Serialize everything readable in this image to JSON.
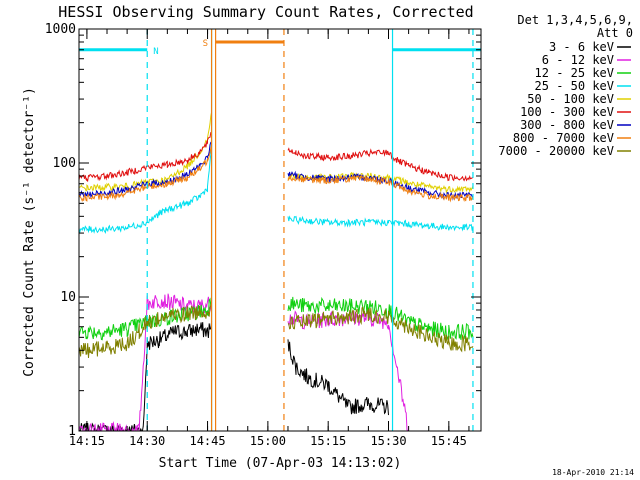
{
  "chart_data": {
    "type": "line",
    "title": "HESSI Observing Summary Count Rates, Corrected",
    "xlabel": "Start Time (07-Apr-03 14:13:02)",
    "ylabel": "Corrected Count Rate (s⁻¹ detector⁻¹)",
    "x_unit": "UT time (HH:MM), 07-Apr-03",
    "xlim": [
      "14:13:02",
      "15:53:00"
    ],
    "ylim": [
      1,
      1000
    ],
    "yscale": "log",
    "grid": false,
    "xticks": [
      "14:15",
      "14:30",
      "14:45",
      "15:00",
      "15:15",
      "15:30",
      "15:45"
    ],
    "yticks": [
      "1",
      "10",
      "100",
      "1000"
    ],
    "legend_title": [
      "Det 1,3,4,5,6,9,",
      "Att 0"
    ],
    "legend_position": "right",
    "timestamp": "18-Apr-2010 21:14",
    "annotations": [
      {
        "text": "N",
        "color": "#00e0f0"
      },
      {
        "text": "S",
        "color": "#f07f10"
      }
    ],
    "flags": {
      "night": {
        "label": "N",
        "color": "#00e0f0",
        "intervals": [
          [
            "14:13:02",
            "14:30:00"
          ],
          [
            "15:31:00",
            "15:53:00"
          ]
        ],
        "bar_y": 700
      },
      "saa": {
        "label": "S",
        "color": "#f07f10",
        "intervals": [
          [
            "14:47:00",
            "15:04:00"
          ]
        ],
        "bar_y": 800
      }
    },
    "vlines": [
      {
        "time": "14:30:00",
        "color": "#00e0f0",
        "style": "dashed"
      },
      {
        "time": "14:46:00",
        "color": "#00e0f0",
        "style": "solid"
      },
      {
        "time": "15:31:00",
        "color": "#00e0f0",
        "style": "solid"
      },
      {
        "time": "15:51:00",
        "color": "#00e0f0",
        "style": "dashed"
      },
      {
        "time": "14:46:00",
        "color": "#f07f10",
        "style": "solid"
      },
      {
        "time": "14:47:00",
        "color": "#f07f10",
        "style": "solid"
      },
      {
        "time": "15:04:00",
        "color": "#f07f10",
        "style": "dashed"
      }
    ],
    "series": [
      {
        "name": "3 - 6 keV",
        "color": "#000000",
        "times": [
          "14:13:02",
          "14:15",
          "14:20",
          "14:25",
          "14:29",
          "14:30",
          "14:33",
          "14:37",
          "14:40",
          "14:43",
          "14:45",
          "14:46",
          "15:05",
          "15:07",
          "15:10",
          "15:15",
          "15:20",
          "15:25",
          "15:30"
        ],
        "values": [
          1,
          1,
          1,
          1,
          1,
          4.5,
          4.8,
          5.5,
          5.5,
          5.8,
          5.5,
          6,
          4.5,
          3,
          2.5,
          2.2,
          1.5,
          1.6,
          1.5
        ]
      },
      {
        "name": "6 - 12 keV",
        "color": "#e020e0",
        "times": [
          "14:13:02",
          "14:15",
          "14:20",
          "14:25",
          "14:28",
          "14:30",
          "14:33",
          "14:37",
          "14:40",
          "14:43",
          "14:46",
          "15:05",
          "15:10",
          "15:15",
          "15:20",
          "15:25",
          "15:30",
          "15:35"
        ],
        "values": [
          1,
          1,
          1,
          1,
          1,
          9,
          9.5,
          9,
          8.5,
          8.5,
          9,
          7,
          6.5,
          6.8,
          7,
          7,
          6.5,
          1
        ]
      },
      {
        "name": "12 - 25 keV",
        "color": "#10d010",
        "times": [
          "14:13:02",
          "14:15",
          "14:20",
          "14:25",
          "14:30",
          "14:35",
          "14:40",
          "14:45",
          "14:46",
          "15:05",
          "15:10",
          "15:15",
          "15:20",
          "15:25",
          "15:30",
          "15:35",
          "15:40",
          "15:45",
          "15:51"
        ],
        "values": [
          5.5,
          5.5,
          5.5,
          5.8,
          6.5,
          7,
          7.5,
          8,
          10,
          9,
          8.5,
          8.5,
          8.5,
          8.5,
          8,
          6.5,
          5.8,
          5.5,
          5.5
        ]
      },
      {
        "name": "25 - 50 keV",
        "color": "#00e0f0",
        "times": [
          "14:13:02",
          "14:15",
          "14:20",
          "14:25",
          "14:30",
          "14:33",
          "14:36",
          "14:40",
          "14:43",
          "14:45",
          "14:46",
          "15:05",
          "15:10",
          "15:15",
          "15:20",
          "15:25",
          "15:30",
          "15:35",
          "15:40",
          "15:45",
          "15:51"
        ],
        "values": [
          32,
          32,
          32,
          33,
          36,
          42,
          46,
          50,
          56,
          65,
          140,
          38,
          37,
          36,
          36,
          36,
          36,
          35,
          34,
          33,
          33
        ]
      },
      {
        "name": "50 - 100 keV",
        "color": "#e0d000",
        "times": [
          "14:13:02",
          "14:15",
          "14:20",
          "14:25",
          "14:30",
          "14:35",
          "14:40",
          "14:43",
          "14:45",
          "14:46",
          "15:05",
          "15:10",
          "15:15",
          "15:20",
          "15:25",
          "15:30",
          "15:33",
          "15:36",
          "15:40",
          "15:45",
          "15:51"
        ],
        "values": [
          65,
          65,
          66,
          67,
          72,
          75,
          95,
          120,
          150,
          240,
          80,
          78,
          78,
          80,
          80,
          78,
          74,
          70,
          66,
          64,
          64
        ]
      },
      {
        "name": "100 - 300 keV",
        "color": "#e01010",
        "times": [
          "14:13:02",
          "14:15",
          "14:20",
          "14:25",
          "14:30",
          "14:35",
          "14:40",
          "14:43",
          "14:45",
          "14:46",
          "15:05",
          "15:07",
          "15:10",
          "15:15",
          "15:20",
          "15:25",
          "15:30",
          "15:32",
          "15:35",
          "15:40",
          "15:45",
          "15:51"
        ],
        "values": [
          78,
          78,
          80,
          85,
          93,
          97,
          105,
          120,
          140,
          175,
          125,
          120,
          112,
          110,
          112,
          118,
          120,
          105,
          95,
          85,
          78,
          78
        ]
      },
      {
        "name": "300 - 800 keV",
        "color": "#0000c0",
        "times": [
          "14:13:02",
          "14:15",
          "14:20",
          "14:25",
          "14:30",
          "14:35",
          "14:40",
          "14:43",
          "14:45",
          "14:46",
          "15:05",
          "15:10",
          "15:15",
          "15:20",
          "15:25",
          "15:30",
          "15:35",
          "15:40",
          "15:45",
          "15:51"
        ],
        "values": [
          58,
          58,
          60,
          63,
          70,
          72,
          82,
          95,
          110,
          150,
          82,
          78,
          76,
          78,
          78,
          74,
          65,
          60,
          57,
          57
        ]
      },
      {
        "name": "800 - 7000 keV",
        "color": "#f07f10",
        "times": [
          "14:13:02",
          "14:15",
          "14:20",
          "14:25",
          "14:30",
          "14:35",
          "14:40",
          "14:43",
          "14:45",
          "14:46",
          "15:05",
          "15:10",
          "15:15",
          "15:20",
          "15:25",
          "15:30",
          "15:35",
          "15:40",
          "15:45",
          "15:51"
        ],
        "values": [
          55,
          55,
          56,
          60,
          66,
          70,
          78,
          90,
          105,
          140,
          78,
          75,
          74,
          76,
          76,
          72,
          62,
          57,
          55,
          55
        ]
      },
      {
        "name": "7000 - 20000 keV",
        "color": "#808000",
        "times": [
          "14:13:02",
          "14:15",
          "14:20",
          "14:25",
          "14:28",
          "14:30",
          "14:35",
          "14:40",
          "14:43",
          "14:46",
          "15:05",
          "15:10",
          "15:15",
          "15:20",
          "15:25",
          "15:30",
          "15:35",
          "15:40",
          "15:45",
          "15:51"
        ],
        "values": [
          4,
          4,
          4.2,
          4.5,
          5.5,
          6.5,
          7.2,
          7.5,
          7.8,
          8,
          6.5,
          6.5,
          7,
          7,
          7.5,
          7,
          6,
          5,
          4.5,
          4.5
        ]
      }
    ]
  }
}
